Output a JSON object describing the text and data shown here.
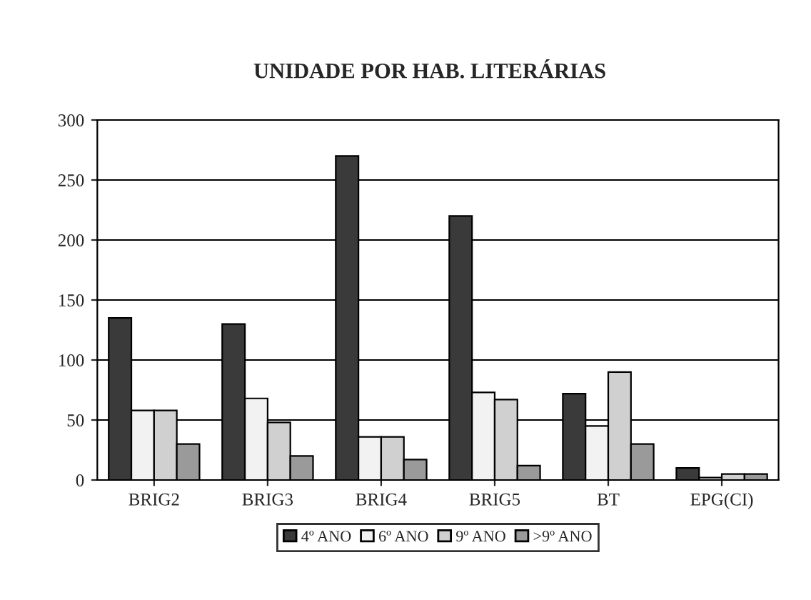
{
  "chart_data": {
    "type": "bar",
    "title": "UNIDADE POR HAB. LITERÁRIAS",
    "categories": [
      "BRIG2",
      "BRIG3",
      "BRIG4",
      "BRIG5",
      "BT",
      "EPG(CI)"
    ],
    "series": [
      {
        "name": "4º ANO",
        "color": "#3a3a3a",
        "values": [
          135,
          130,
          270,
          220,
          72,
          10
        ]
      },
      {
        "name": "6º ANO",
        "color": "#f2f2f2",
        "values": [
          58,
          68,
          36,
          73,
          45,
          2
        ]
      },
      {
        "name": "9º ANO",
        "color": "#d0d0d0",
        "values": [
          58,
          48,
          36,
          67,
          90,
          5
        ]
      },
      {
        "name": ">9º ANO",
        "color": "#9a9a9a",
        "values": [
          30,
          20,
          17,
          12,
          30,
          5
        ]
      }
    ],
    "ylim": [
      0,
      300
    ],
    "yticks": [
      0,
      50,
      100,
      150,
      200,
      250,
      300
    ],
    "grid": "y",
    "legend": "bottom"
  }
}
